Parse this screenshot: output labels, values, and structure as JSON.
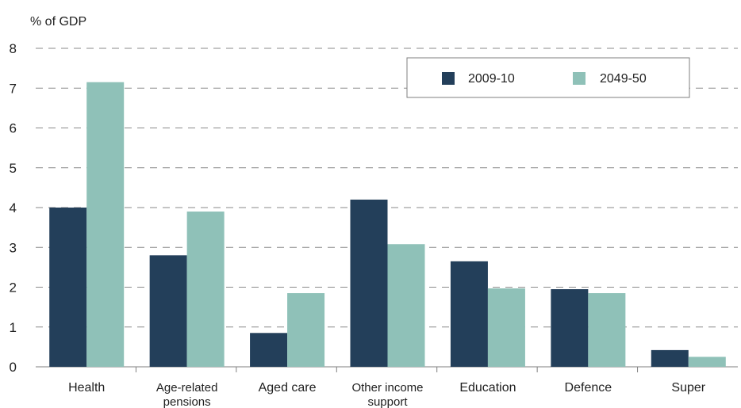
{
  "chart_data": {
    "type": "bar",
    "title": "",
    "xlabel": "",
    "ylabel": "% of GDP",
    "ylim": [
      0,
      8
    ],
    "yticks": [
      0,
      1,
      2,
      3,
      4,
      5,
      6,
      7,
      8
    ],
    "grid": true,
    "legend_position": "top-right",
    "categories": [
      [
        "Health"
      ],
      [
        "Age-related",
        "pensions"
      ],
      [
        "Aged care"
      ],
      [
        "Other income",
        "support"
      ],
      [
        "Education"
      ],
      [
        "Defence"
      ],
      [
        "Super"
      ]
    ],
    "series": [
      {
        "name": "2009-10",
        "color": "#233f5a",
        "values": [
          4.0,
          2.8,
          0.85,
          4.2,
          2.65,
          1.95,
          0.42
        ]
      },
      {
        "name": "2049-50",
        "color": "#8fc1b8",
        "values": [
          7.15,
          3.9,
          1.85,
          3.08,
          1.97,
          1.85,
          0.25
        ]
      }
    ]
  }
}
